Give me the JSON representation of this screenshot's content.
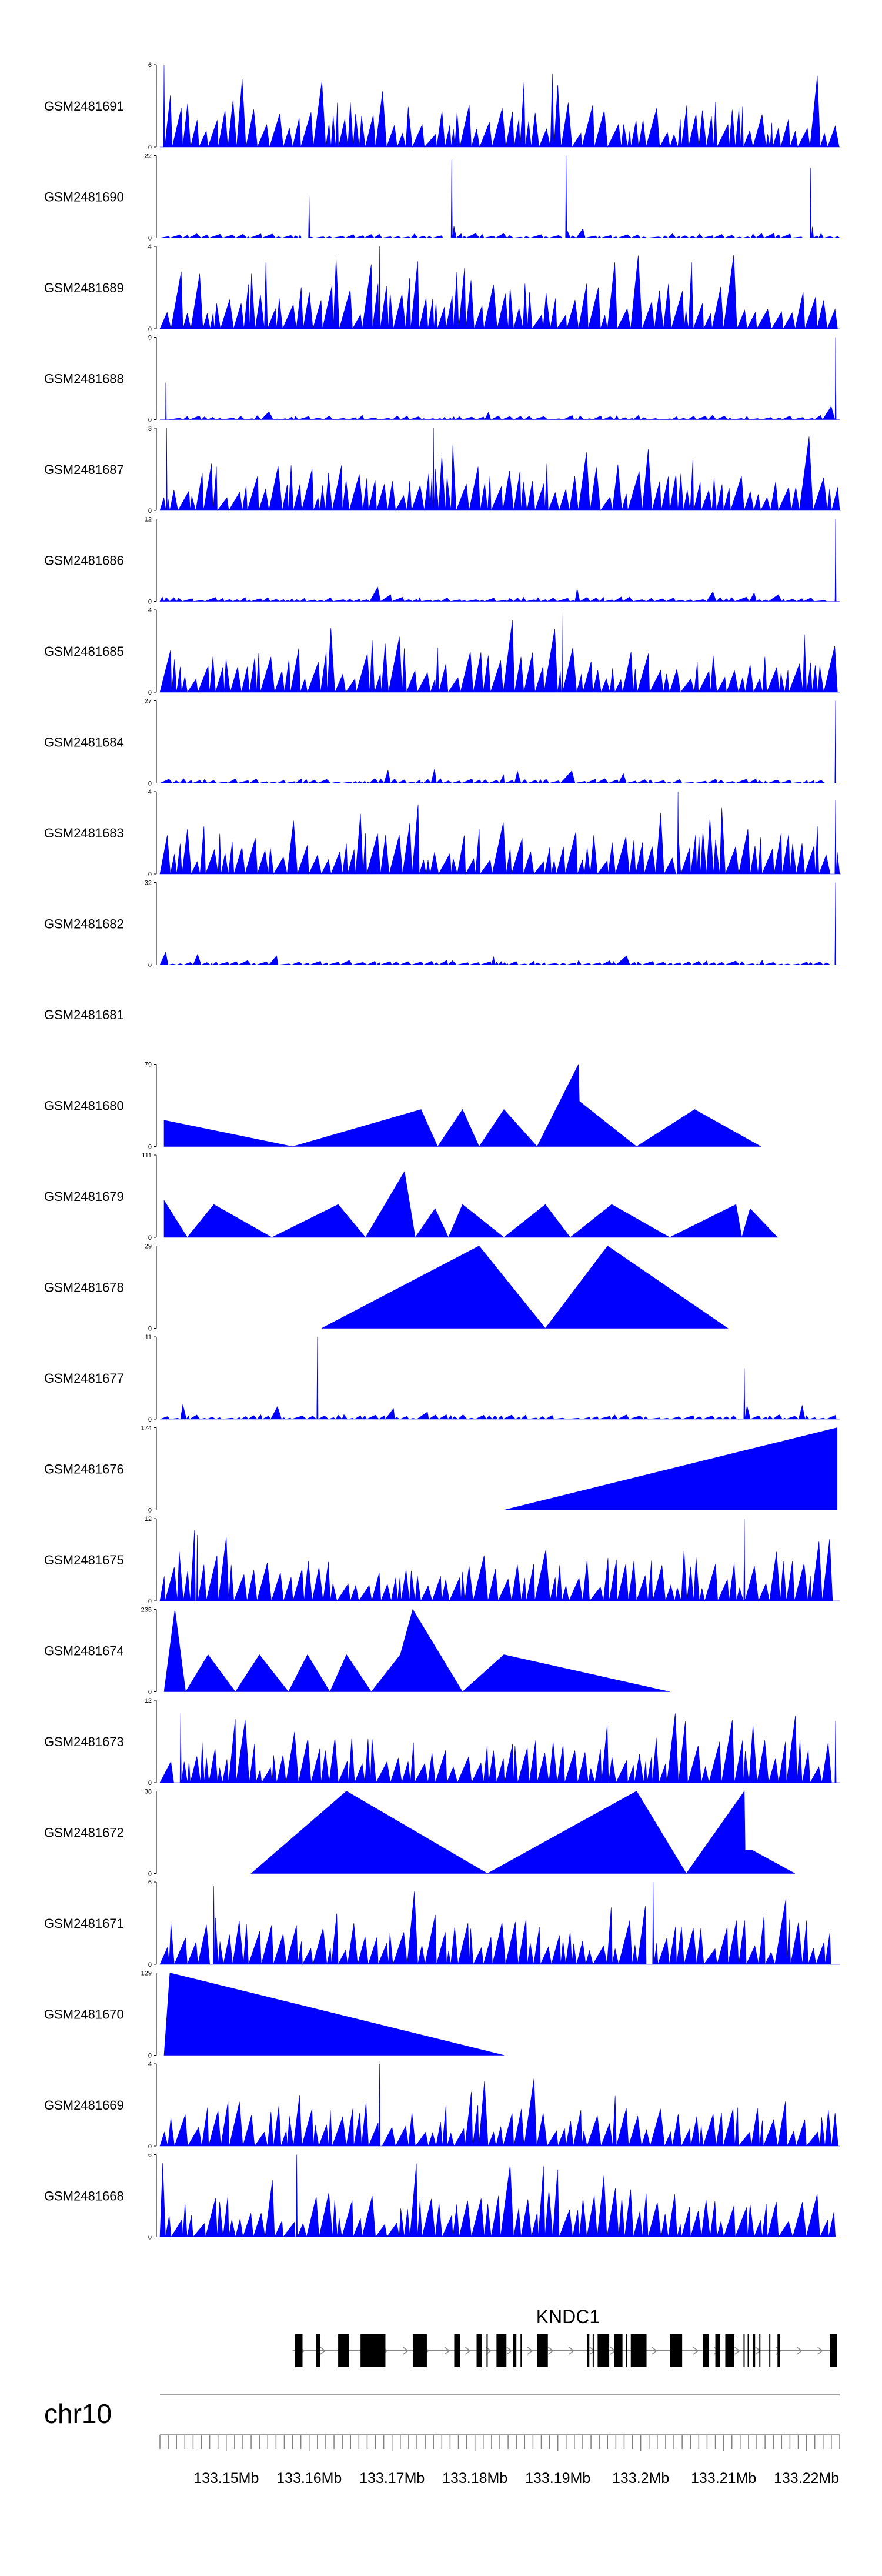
{
  "chart_data": {
    "type": "area",
    "chromosome": "chr10",
    "x_range_mb": [
      133.142,
      133.224
    ],
    "tracks": [
      {
        "name": "GSM2481691",
        "ymax": "6",
        "ymin": "0",
        "pattern": "dense",
        "seed": 11,
        "anchors": [
          [
            133.1425,
            1.0
          ]
        ]
      },
      {
        "name": "GSM2481690",
        "ymax": "22",
        "ymin": "0",
        "pattern": "sparse",
        "seed": 12,
        "anchors": [
          [
            133.16,
            0.5
          ],
          [
            133.1772,
            0.95
          ],
          [
            133.191,
            1.0
          ],
          [
            133.2205,
            0.85
          ]
        ]
      },
      {
        "name": "GSM2481689",
        "ymax": "4",
        "ymin": "0",
        "pattern": "dense",
        "seed": 13,
        "anchors": [
          [
            133.1685,
            1.0
          ]
        ]
      },
      {
        "name": "GSM2481688",
        "ymax": "9",
        "ymin": "0",
        "pattern": "lowspike",
        "seed": 14,
        "anchors": [
          [
            133.2235,
            1.0
          ],
          [
            133.1427,
            0.45
          ]
        ]
      },
      {
        "name": "GSM2481687",
        "ymax": "3",
        "ymin": "0",
        "pattern": "dense",
        "seed": 15,
        "anchors": [
          [
            133.1428,
            1.0
          ],
          [
            133.175,
            1.0
          ]
        ]
      },
      {
        "name": "GSM2481686",
        "ymax": "12",
        "ymin": "0",
        "pattern": "lowspike",
        "seed": 16,
        "anchors": [
          [
            133.2235,
            1.0
          ]
        ]
      },
      {
        "name": "GSM2481685",
        "ymax": "4",
        "ymin": "0",
        "pattern": "dense",
        "seed": 17,
        "anchors": [
          [
            133.1905,
            1.0
          ]
        ]
      },
      {
        "name": "GSM2481684",
        "ymax": "27",
        "ymin": "0",
        "pattern": "lowspike",
        "seed": 18,
        "anchors": [
          [
            133.2235,
            1.0
          ]
        ]
      },
      {
        "name": "GSM2481683",
        "ymax": "4",
        "ymin": "0",
        "pattern": "dense",
        "seed": 19,
        "anchors": [
          [
            133.2045,
            1.0
          ],
          [
            133.2235,
            0.9
          ]
        ]
      },
      {
        "name": "GSM2481682",
        "ymax": "32",
        "ymin": "0",
        "pattern": "lowspike",
        "seed": 20,
        "anchors": [
          [
            133.2235,
            1.0
          ]
        ]
      },
      {
        "name": "GSM2481681",
        "ymax": "",
        "ymin": "",
        "pattern": "none",
        "seed": 21,
        "anchors": []
      },
      {
        "name": "GSM2481680",
        "ymax": "79",
        "ymin": "0",
        "pattern": "points",
        "seed": 22,
        "points": [
          [
            133.1425,
            0.32
          ],
          [
            133.158,
            0.0
          ],
          [
            133.1735,
            0.45
          ],
          [
            133.1755,
            0.0
          ],
          [
            133.1785,
            0.45
          ],
          [
            133.1805,
            0.0
          ],
          [
            133.1835,
            0.45
          ],
          [
            133.1875,
            0.0
          ],
          [
            133.1925,
            1.0
          ],
          [
            133.1926,
            0.55
          ],
          [
            133.1995,
            0.0
          ],
          [
            133.2065,
            0.45
          ],
          [
            133.2145,
            0.0
          ]
        ]
      },
      {
        "name": "GSM2481679",
        "ymax": "111",
        "ymin": "0",
        "pattern": "points",
        "seed": 23,
        "points": [
          [
            133.1425,
            0.45
          ],
          [
            133.1453,
            0.0
          ],
          [
            133.1485,
            0.4
          ],
          [
            133.1555,
            0.0
          ],
          [
            133.1635,
            0.4
          ],
          [
            133.1668,
            0.0
          ],
          [
            133.1715,
            0.8
          ],
          [
            133.1728,
            0.0
          ],
          [
            133.1752,
            0.35
          ],
          [
            133.1768,
            0.0
          ],
          [
            133.1785,
            0.4
          ],
          [
            133.1835,
            0.0
          ],
          [
            133.1885,
            0.4
          ],
          [
            133.1915,
            0.0
          ],
          [
            133.1965,
            0.4
          ],
          [
            133.2035,
            0.0
          ],
          [
            133.2115,
            0.4
          ],
          [
            133.2122,
            0.0
          ],
          [
            133.2132,
            0.35
          ],
          [
            133.2165,
            0.0
          ]
        ]
      },
      {
        "name": "GSM2481678",
        "ymax": "29",
        "ymin": "0",
        "pattern": "points",
        "seed": 24,
        "points": [
          [
            133.1615,
            0.0
          ],
          [
            133.1805,
            1.0
          ],
          [
            133.1885,
            0.0
          ],
          [
            133.196,
            1.0
          ],
          [
            133.2105,
            0.0
          ]
        ]
      },
      {
        "name": "GSM2481677",
        "ymax": "11",
        "ymin": "0",
        "pattern": "lowspike",
        "seed": 25,
        "anchors": [
          [
            133.161,
            1.0
          ],
          [
            133.2125,
            0.62
          ]
        ]
      },
      {
        "name": "GSM2481676",
        "ymax": "174",
        "ymin": "0",
        "pattern": "points",
        "seed": 26,
        "points": [
          [
            133.1835,
            0.0
          ],
          [
            133.2237,
            1.0
          ],
          [
            133.2237,
            0.0
          ]
        ]
      },
      {
        "name": "GSM2481675",
        "ymax": "12",
        "ymin": "0",
        "pattern": "dense",
        "seed": 27,
        "anchors": [
          [
            133.2125,
            1.0
          ],
          [
            133.1465,
            0.8
          ]
        ]
      },
      {
        "name": "GSM2481674",
        "ymax": "235",
        "ymin": "0",
        "pattern": "points",
        "seed": 28,
        "points": [
          [
            133.1425,
            0.0
          ],
          [
            133.1438,
            1.0
          ],
          [
            133.1451,
            0.0
          ],
          [
            133.1478,
            0.45
          ],
          [
            133.1511,
            0.0
          ],
          [
            133.154,
            0.45
          ],
          [
            133.1575,
            0.0
          ],
          [
            133.1598,
            0.45
          ],
          [
            133.1625,
            0.0
          ],
          [
            133.1645,
            0.45
          ],
          [
            133.1675,
            0.0
          ],
          [
            133.171,
            0.45
          ],
          [
            133.1725,
            1.0
          ],
          [
            133.1785,
            0.0
          ],
          [
            133.1835,
            0.45
          ],
          [
            133.2035,
            0.0
          ]
        ]
      },
      {
        "name": "GSM2481673",
        "ymax": "12",
        "ymin": "0",
        "pattern": "dense",
        "seed": 29,
        "anchors": [
          [
            133.1445,
            0.85
          ],
          [
            133.2235,
            0.75
          ]
        ]
      },
      {
        "name": "GSM2481672",
        "ymax": "38",
        "ymin": "0",
        "pattern": "points",
        "seed": 30,
        "points": [
          [
            133.153,
            0.0
          ],
          [
            133.1645,
            1.0
          ],
          [
            133.1815,
            0.0
          ],
          [
            133.1995,
            1.0
          ],
          [
            133.2055,
            0.0
          ],
          [
            133.2125,
            1.0
          ],
          [
            133.2126,
            0.28
          ],
          [
            133.2135,
            0.28
          ],
          [
            133.2186,
            0.0
          ]
        ]
      },
      {
        "name": "GSM2481671",
        "ymax": "6",
        "ymin": "0",
        "pattern": "dense",
        "seed": 31,
        "anchors": [
          [
            133.2015,
            1.0
          ],
          [
            133.1485,
            0.95
          ]
        ]
      },
      {
        "name": "GSM2481670",
        "ymax": "129",
        "ymin": "0",
        "pattern": "points",
        "seed": 32,
        "points": [
          [
            133.1425,
            0.0
          ],
          [
            133.1432,
            1.0
          ],
          [
            133.1835,
            0.0
          ]
        ]
      },
      {
        "name": "GSM2481669",
        "ymax": "4",
        "ymin": "0",
        "pattern": "dense",
        "seed": 33,
        "anchors": [
          [
            133.1685,
            1.0
          ]
        ]
      },
      {
        "name": "GSM2481668",
        "ymax": "6",
        "ymin": "0",
        "pattern": "dense",
        "seed": 34,
        "anchors": [
          [
            133.1585,
            1.0
          ]
        ]
      }
    ],
    "gene": {
      "name": "KNDC1",
      "start_mb": 133.158,
      "end_mb": 133.2237,
      "exons": [
        [
          133.1583,
          133.1592
        ],
        [
          133.1608,
          133.1613
        ],
        [
          133.1635,
          133.1648
        ],
        [
          133.1662,
          133.1692
        ],
        [
          133.1725,
          133.1742
        ],
        [
          133.1775,
          133.1782
        ],
        [
          133.1802,
          133.1808
        ],
        [
          133.1826,
          133.1838
        ],
        [
          133.1846,
          133.185
        ],
        [
          133.1875,
          133.1888
        ],
        [
          133.1935,
          133.1938
        ],
        [
          133.1948,
          133.1962
        ],
        [
          133.1968,
          133.1978
        ],
        [
          133.1988,
          133.2007
        ],
        [
          133.2035,
          133.205
        ],
        [
          133.2075,
          133.2082
        ],
        [
          133.209,
          133.2096
        ],
        [
          133.2102,
          133.2113
        ],
        [
          133.2135,
          133.2138
        ],
        [
          133.2165,
          133.2168
        ],
        [
          133.2228,
          133.2237
        ]
      ],
      "introns_arrows": ">"
    },
    "x_ticks": [
      "133.15Mb",
      "133.16Mb",
      "133.17Mb",
      "133.18Mb",
      "133.19Mb",
      "133.2Mb",
      "133.21Mb",
      "133.22Mb"
    ],
    "x_tick_values": [
      133.15,
      133.16,
      133.17,
      133.18,
      133.19,
      133.2,
      133.21,
      133.22
    ],
    "fill_color": "#0000ff",
    "grid": false,
    "legend": "none"
  }
}
